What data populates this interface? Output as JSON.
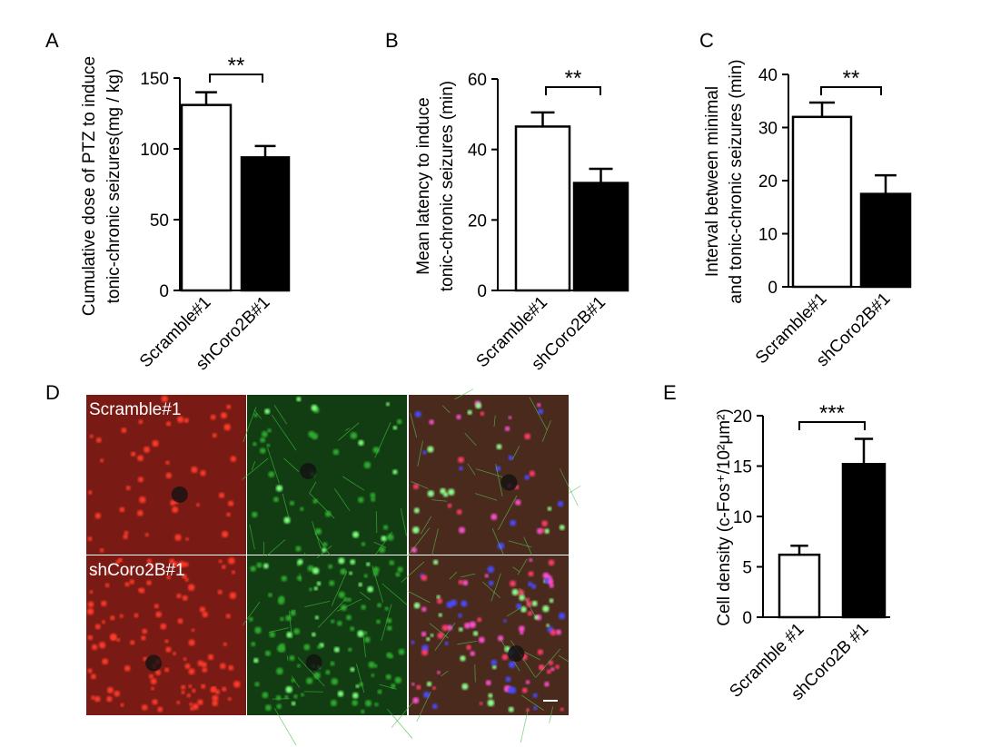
{
  "chart_data": [
    {
      "type": "bar",
      "panel_label": "A",
      "ylabel": [
        "Cumulative dose of PTZ to induce",
        "tonic-chronic seizures(mg / kg)"
      ],
      "categories": [
        "Scramble#1",
        "shCoro2B#1"
      ],
      "values": [
        131,
        94
      ],
      "errors": [
        9,
        8
      ],
      "colors": [
        "#ffffff",
        "#000000"
      ],
      "ylim": [
        0,
        150
      ],
      "yticks": [
        0,
        50,
        100,
        150
      ],
      "annotation": "**"
    },
    {
      "type": "bar",
      "panel_label": "B",
      "ylabel": [
        "Mean latency to induce",
        "tonic-chronic seizures (min)"
      ],
      "categories": [
        "Scramble#1",
        "shCoro2B#1"
      ],
      "values": [
        46.5,
        30.5
      ],
      "errors": [
        4,
        4
      ],
      "colors": [
        "#ffffff",
        "#000000"
      ],
      "ylim": [
        0,
        60
      ],
      "yticks": [
        0,
        20,
        40,
        60
      ],
      "annotation": "**"
    },
    {
      "type": "bar",
      "panel_label": "C",
      "ylabel": [
        "Interval between minimal",
        "and tonic-chronic seizures (min)"
      ],
      "categories": [
        "Scramble#1",
        "shCoro2B#1"
      ],
      "values": [
        32,
        17.5
      ],
      "errors": [
        2.7,
        3.5
      ],
      "colors": [
        "#ffffff",
        "#000000"
      ],
      "ylim": [
        0,
        40
      ],
      "yticks": [
        0,
        10,
        20,
        30,
        40
      ],
      "annotation": "**"
    },
    {
      "type": "bar",
      "panel_label": "E",
      "ylabel": [
        "Cell density (c-Fos⁺/10²μm²)"
      ],
      "categories": [
        "Scramble #1",
        "shCoro2B #1"
      ],
      "values": [
        6.2,
        15.2
      ],
      "errors": [
        0.9,
        2.5
      ],
      "colors": [
        "#ffffff",
        "#000000"
      ],
      "ylim": [
        0,
        20
      ],
      "yticks": [
        0,
        5,
        10,
        15,
        20
      ],
      "annotation": "***"
    }
  ],
  "image_panel": {
    "panel_label": "D",
    "row_labels": [
      "Scramble#1",
      "shCoro2B#1"
    ]
  }
}
